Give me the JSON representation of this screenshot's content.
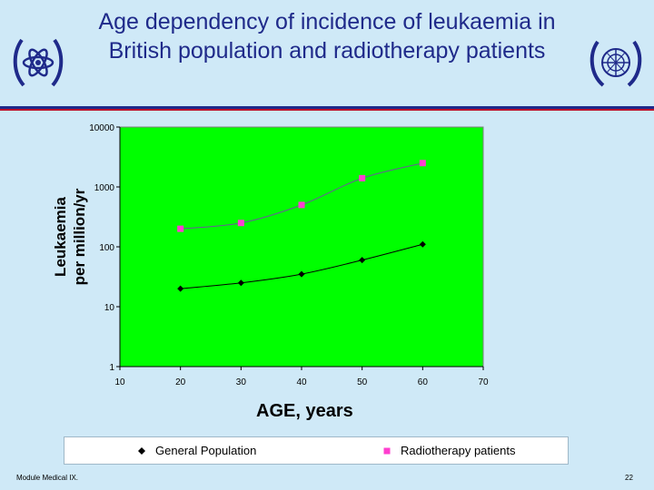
{
  "slide": {
    "title_line1": "Age dependency of incidence of leukaemia in",
    "title_line2": "British population and radiotherapy patients",
    "footer_left": "Module Medical IX.",
    "page_number": "22",
    "background_color": "#cfe9f7",
    "title_color": "#1f2a8a"
  },
  "chart_data": {
    "type": "line",
    "title": "",
    "xlabel": "AGE, years",
    "ylabel_line1": "Leukaemia",
    "ylabel_line2": "per million/yr",
    "x_ticks": [
      "10",
      "20",
      "30",
      "40",
      "50",
      "60",
      "70"
    ],
    "y_ticks": [
      "1",
      "10",
      "100",
      "1000",
      "10000"
    ],
    "xlim": [
      10,
      70
    ],
    "ylim": [
      1,
      10000
    ],
    "y_scale": "log",
    "plot_background": "#00ff00",
    "x": [
      20,
      30,
      40,
      50,
      60
    ],
    "series": [
      {
        "name": "General Population",
        "marker": "diamond",
        "color": "#000000",
        "values": [
          20,
          25,
          35,
          60,
          110
        ]
      },
      {
        "name": "Radiotherapy patients",
        "marker": "square",
        "color": "#ff3ecf",
        "values": [
          200,
          250,
          500,
          1400,
          2500
        ]
      }
    ],
    "legend_position": "bottom"
  }
}
